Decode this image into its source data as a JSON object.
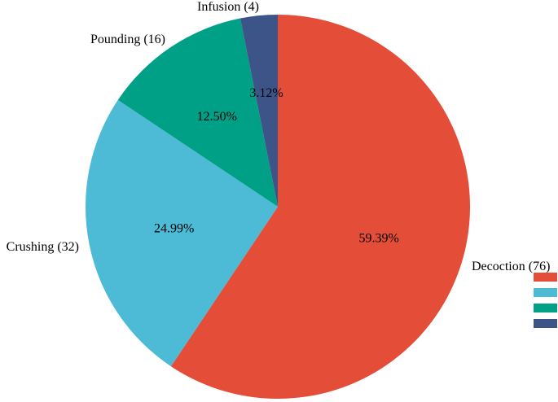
{
  "chart_data": {
    "type": "pie",
    "title": "",
    "slices": [
      {
        "category": "Decoction",
        "label": "Decoction (76)",
        "count": 76,
        "percent_label": "59.39%",
        "color": "#E44D38"
      },
      {
        "category": "Crushing",
        "label": "Crushing (32)",
        "count": 32,
        "percent_label": "24.99%",
        "color": "#4DBBD5"
      },
      {
        "category": "Pounding",
        "label": "Pounding (16)",
        "count": 16,
        "percent_label": "12.50%",
        "color": "#00A087"
      },
      {
        "category": "Infusion",
        "label": "Infusion (4)",
        "count": 4,
        "percent_label": "3.12%",
        "color": "#3C5488"
      }
    ],
    "legend": {
      "placement": "right",
      "labels_shown": false
    }
  }
}
